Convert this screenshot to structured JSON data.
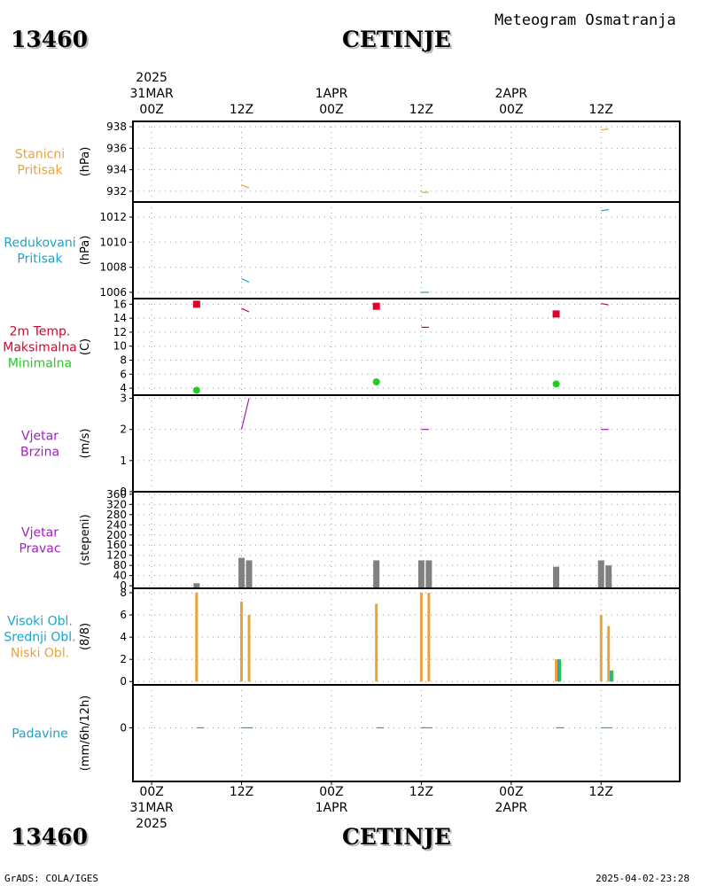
{
  "header": {
    "station_id": "13460",
    "station_name": "CETINJE",
    "subtitle": "Meteogram Osmatranja"
  },
  "time_axis": {
    "top_labels": [
      {
        "line1": "",
        "line2": "",
        "line3": "00Z"
      },
      {
        "line1": "",
        "line2": "",
        "line3": "12Z"
      },
      {
        "line1": "",
        "line2": "1APR",
        "line3": "00Z"
      },
      {
        "line1": "",
        "line2": "",
        "line3": "12Z"
      },
      {
        "line1": "",
        "line2": "2APR",
        "line3": "00Z"
      },
      {
        "line1": "",
        "line2": "",
        "line3": "12Z"
      }
    ],
    "top_first_extra": {
      "year": "2025",
      "date": "31MAR"
    },
    "bottom_labels": [
      {
        "time": "00Z",
        "date": "31MAR",
        "year": "2025"
      },
      {
        "time": "12Z",
        "date": "",
        "year": ""
      },
      {
        "time": "00Z",
        "date": "1APR",
        "year": ""
      },
      {
        "time": "12Z",
        "date": "",
        "year": ""
      },
      {
        "time": "00Z",
        "date": "2APR",
        "year": ""
      },
      {
        "time": "12Z",
        "date": "",
        "year": ""
      }
    ],
    "hours": [
      0,
      12,
      24,
      36,
      48,
      60
    ],
    "range_hours": [
      -2.5,
      70.5
    ]
  },
  "footer": {
    "left": "GrADS: COLA/IGES",
    "right": "2025-04-02-23:28"
  },
  "colors": {
    "station_pressure": "#e8a33c",
    "reduced_pressure": "#1aa3c8",
    "max_temp": "#e0002a",
    "min_temp": "#22cc22",
    "wind": "#a020c0",
    "wind_dir_bar": "#808080",
    "cloud_low": "#e8a33c",
    "cloud_mid": "#1aa3c8",
    "cloud_high": "#22cc22",
    "precip": "#1aa3c8"
  },
  "chart_data": [
    {
      "type": "line",
      "panel": "station_pressure",
      "label_lines": [
        "Stanicni",
        "Pritisak"
      ],
      "ylabel": "(hPa)",
      "ylim": [
        931,
        938.5
      ],
      "yticks": [
        932,
        934,
        936,
        938
      ],
      "series": [
        {
          "segments": [
            {
              "x": [
                12,
                13
              ],
              "y": [
                932.6,
                932.3
              ]
            },
            {
              "x": [
                36,
                37
              ],
              "y": [
                931.9,
                931.9
              ]
            },
            {
              "x": [
                60,
                61
              ],
              "y": [
                937.7,
                937.8
              ]
            }
          ]
        }
      ]
    },
    {
      "type": "line",
      "panel": "reduced_pressure",
      "label_lines": [
        "Redukovani",
        "Pritisak"
      ],
      "ylabel": "(hPa)",
      "ylim": [
        1005.5,
        1013.2
      ],
      "yticks": [
        1006,
        1008,
        1010,
        1012
      ],
      "series": [
        {
          "segments": [
            {
              "x": [
                12,
                13
              ],
              "y": [
                1007.1,
                1006.8
              ]
            },
            {
              "x": [
                36,
                37
              ],
              "y": [
                1006.0,
                1006.0
              ]
            },
            {
              "x": [
                60,
                61
              ],
              "y": [
                1012.5,
                1012.6
              ]
            }
          ]
        }
      ]
    },
    {
      "type": "line",
      "panel": "temperature",
      "label_lines": [
        "2m Temp.",
        "Maksimalna",
        "Minimalna"
      ],
      "ylabel": "(C)",
      "ylim": [
        3,
        16.8
      ],
      "yticks": [
        4,
        6,
        8,
        10,
        12,
        14,
        16
      ],
      "series": [
        {
          "kind": "max_markers",
          "x": [
            6,
            30,
            54
          ],
          "y": [
            16.0,
            15.7,
            14.6
          ]
        },
        {
          "kind": "min_markers",
          "x": [
            6,
            30,
            54
          ],
          "y": [
            3.7,
            4.9,
            4.6
          ]
        },
        {
          "kind": "temp_line",
          "segments": [
            {
              "x": [
                12,
                13
              ],
              "y": [
                15.4,
                14.9
              ]
            },
            {
              "x": [
                36,
                37
              ],
              "y": [
                12.7,
                12.7
              ]
            },
            {
              "x": [
                60,
                61
              ],
              "y": [
                16.1,
                15.9
              ]
            }
          ]
        }
      ]
    },
    {
      "type": "line",
      "panel": "wind_speed",
      "label_lines": [
        "Vjetar",
        "Brzina"
      ],
      "ylabel": "(m/s)",
      "ylim": [
        0,
        3.1
      ],
      "yticks": [
        0,
        1,
        2,
        3
      ],
      "series": [
        {
          "segments": [
            {
              "x": [
                12,
                13
              ],
              "y": [
                2.0,
                3.0
              ]
            },
            {
              "x": [
                36,
                37
              ],
              "y": [
                2.0,
                2.0
              ]
            },
            {
              "x": [
                60,
                61
              ],
              "y": [
                2.0,
                2.0
              ]
            }
          ]
        }
      ]
    },
    {
      "type": "bar",
      "panel": "wind_direction",
      "label_lines": [
        "Vjetar",
        "Pravac"
      ],
      "ylabel": "(stepeni)",
      "ylim": [
        -10,
        370
      ],
      "yticks": [
        0,
        40,
        80,
        120,
        160,
        200,
        240,
        280,
        320,
        360
      ],
      "x": [
        6,
        12,
        13,
        30,
        36,
        37,
        54,
        60,
        61
      ],
      "values": [
        10,
        110,
        100,
        100,
        100,
        100,
        75,
        100,
        80
      ]
    },
    {
      "type": "bar",
      "panel": "clouds",
      "label_lines": [
        "Visoki Obl.",
        "Srednji Obl.",
        "Niski Obl."
      ],
      "ylabel": "(8/8)",
      "ylim": [
        -0.3,
        8.4
      ],
      "yticks": [
        0,
        2,
        4,
        6,
        8
      ],
      "x": [
        6,
        12,
        13,
        30,
        36,
        37,
        54,
        60,
        61
      ],
      "series": [
        {
          "kind": "low",
          "values": [
            8,
            7.2,
            6,
            7,
            8,
            8,
            2,
            6,
            5
          ]
        },
        {
          "kind": "mid",
          "values": [
            0,
            0,
            0,
            0,
            0,
            0,
            2,
            0,
            1
          ]
        },
        {
          "kind": "high",
          "values": [
            0,
            0,
            0,
            0,
            0,
            0,
            2,
            0,
            1
          ]
        }
      ]
    },
    {
      "type": "line",
      "panel": "precipitation",
      "label_lines": [
        "Padavine"
      ],
      "ylabel": "(mm/6h/12h)",
      "ylim": [
        -5,
        4
      ],
      "yticks": [
        0
      ],
      "series": [
        {
          "segments": [
            {
              "x": [
                6,
                7
              ],
              "y": [
                0,
                0
              ]
            },
            {
              "x": [
                12,
                13.5
              ],
              "y": [
                0,
                0
              ]
            },
            {
              "x": [
                30,
                31
              ],
              "y": [
                0,
                0
              ]
            },
            {
              "x": [
                36,
                37.5
              ],
              "y": [
                0,
                0
              ]
            },
            {
              "x": [
                54,
                55
              ],
              "y": [
                0,
                0
              ]
            },
            {
              "x": [
                60,
                61.5
              ],
              "y": [
                0,
                0
              ]
            }
          ]
        }
      ]
    }
  ]
}
